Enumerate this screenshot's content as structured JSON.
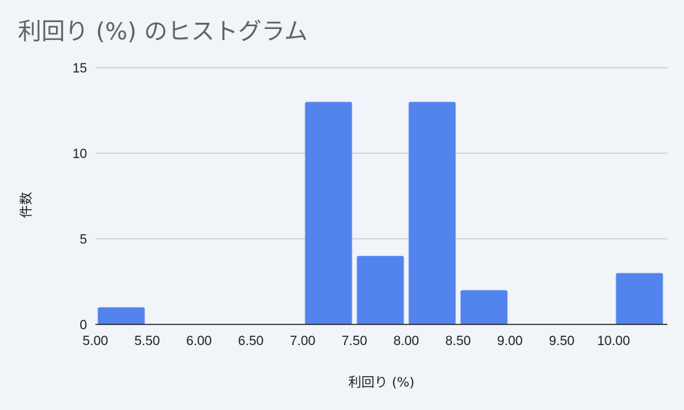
{
  "chart_data": {
    "type": "bar",
    "title": "利回り (%) のヒストグラム",
    "xlabel": "利回り (%)",
    "ylabel": "件数",
    "bin_edges": [
      5.0,
      5.5,
      6.0,
      6.5,
      7.0,
      7.5,
      8.0,
      8.5,
      9.0,
      9.5,
      10.0,
      10.5
    ],
    "values": [
      1,
      0,
      0,
      0,
      13,
      4,
      13,
      2,
      0,
      0,
      3
    ],
    "x_tick_labels": [
      "5.00",
      "5.50",
      "6.00",
      "6.50",
      "7.00",
      "7.50",
      "8.00",
      "8.50",
      "9.00",
      "9.50",
      "10.00"
    ],
    "y_ticks": [
      0,
      5,
      10,
      15
    ],
    "ylim": [
      0,
      15
    ],
    "xlim": [
      5.0,
      10.5
    ],
    "grid": true,
    "legend": "none",
    "bar_color": "#5384ed",
    "grid_color": "#c4c7cc",
    "axis_color": "#1f1f1f"
  }
}
